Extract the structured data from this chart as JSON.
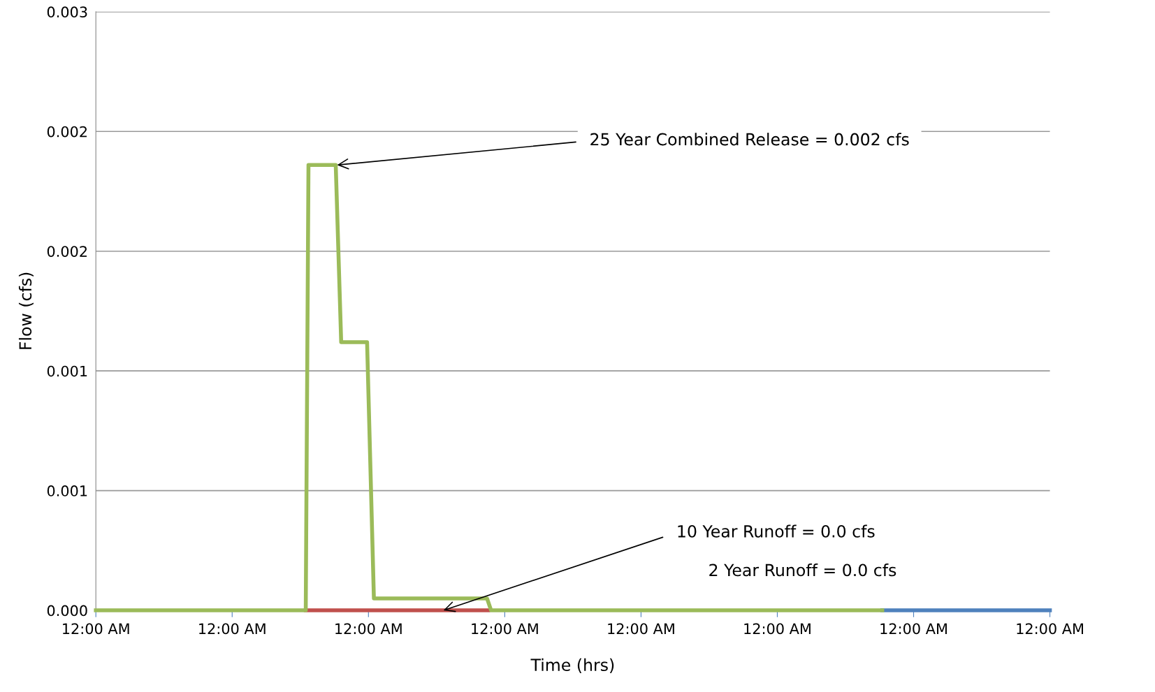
{
  "chart_data": {
    "type": "line",
    "xlabel": "Time (hrs)",
    "ylabel": "Flow (cfs)",
    "xlim": [
      0,
      7
    ],
    "xticks": [
      {
        "value": 0,
        "label": "12:00 AM"
      },
      {
        "value": 1,
        "label": "12:00 AM"
      },
      {
        "value": 2,
        "label": "12:00 AM"
      },
      {
        "value": 3,
        "label": "12:00 AM"
      },
      {
        "value": 4,
        "label": "12:00 AM"
      },
      {
        "value": 5,
        "label": "12:00 AM"
      },
      {
        "value": 6,
        "label": "12:00 AM"
      },
      {
        "value": 7,
        "label": "12:00 AM"
      }
    ],
    "ylim": [
      0,
      0.0025
    ],
    "yticks": [
      {
        "value": 0,
        "label": "0.000"
      },
      {
        "value": 0.0005,
        "label": "0.001"
      },
      {
        "value": 0.001,
        "label": "0.001"
      },
      {
        "value": 0.0015,
        "label": "0.002"
      },
      {
        "value": 0.002,
        "label": "0.002"
      },
      {
        "value": 0.0025,
        "label": "0.003"
      }
    ],
    "grid": "y",
    "legend": false,
    "marker": "none",
    "line_style": "solid",
    "series": [
      {
        "color": "#4f81bd",
        "x": [
          5.77,
          7
        ],
        "values": [
          0,
          0
        ]
      },
      {
        "color": "#c0504d",
        "x": [
          1.54,
          2.88
        ],
        "values": [
          0,
          0
        ]
      },
      {
        "color": "#9bbb59",
        "x": [
          0,
          1.54,
          1.56,
          1.76,
          1.8,
          1.99,
          2.04,
          2.87,
          2.9,
          5.77
        ],
        "values": [
          0,
          0,
          0.00186,
          0.00186,
          0.00112,
          0.00112,
          5e-05,
          5e-05,
          0,
          0
        ]
      }
    ],
    "annotations": [
      {
        "text": "25 Year Combined Release = 0.002 cfs",
        "x": 1.77,
        "y": 0.00186
      },
      {
        "text": "10 Year Runoff = 0.0 cfs",
        "x": 2.55,
        "y": 0
      },
      "2 Year Runoff = 0.0 cfs"
    ]
  }
}
